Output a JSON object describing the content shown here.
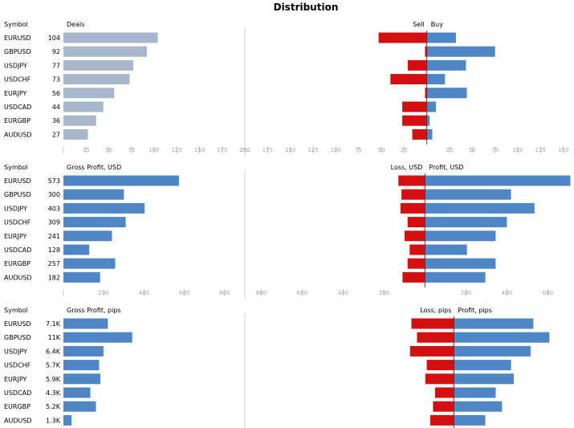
{
  "title": "Distribution",
  "symbols": [
    "EURUSD",
    "GBPUSD",
    "USDJPY",
    "USDCHF",
    "EURJPY",
    "USDCAD",
    "EURGBP",
    "AUDUSD"
  ],
  "colors": {
    "grey_bar": "#a9b7cd",
    "blue_bar": "#4f86c6",
    "red_bar": "#d40f0f",
    "axis": "#c8c8c8",
    "text": "#000000",
    "tick": "#a6a6a6"
  },
  "chart_data": [
    {
      "type": "bar",
      "panel": "deals",
      "symbol_header": "Symbol",
      "left_header": "Deals",
      "left_values": [
        104,
        92,
        77,
        73,
        56,
        44,
        36,
        27
      ],
      "left_labels": [
        "104",
        "92",
        "77",
        "73",
        "56",
        "44",
        "36",
        "27"
      ],
      "left_ticks": [
        25,
        50,
        75,
        100,
        125,
        150,
        175,
        200
      ],
      "left_tick_labels": [
        "25",
        "50",
        "75",
        "100",
        "125",
        "150",
        "175",
        "200"
      ],
      "left_xlim": [
        0,
        200
      ],
      "neg_header": "Sell",
      "pos_header": "Buy",
      "neg_values": [
        53,
        2,
        21,
        40,
        2,
        27,
        27,
        16
      ],
      "pos_values": [
        32,
        75,
        43,
        20,
        44,
        10,
        3,
        6
      ],
      "center_ticks": [
        200,
        175,
        150,
        125,
        100,
        75,
        50,
        25,
        25,
        50,
        75,
        100,
        125,
        150
      ],
      "center_tick_labels": [
        "200",
        "175",
        "150",
        "125",
        "100",
        "75",
        "50",
        "25",
        "25",
        "50",
        "75",
        "100",
        "125",
        "150"
      ],
      "center_xlim": [
        -200,
        160
      ]
    },
    {
      "type": "bar",
      "panel": "profit_usd",
      "symbol_header": "Symbol",
      "left_header": "Gross Profit, USD",
      "left_values": [
        573,
        300,
        403,
        309,
        241,
        128,
        257,
        182
      ],
      "left_labels": [
        "573",
        "300",
        "403",
        "309",
        "241",
        "128",
        "257",
        "182"
      ],
      "left_ticks": [
        200,
        400,
        600,
        800
      ],
      "left_tick_labels": [
        "200",
        "400",
        "600",
        "800"
      ],
      "left_xlim": [
        0,
        900
      ],
      "neg_header": "Loss, USD",
      "pos_header": "Profit, USD",
      "neg_values": [
        130,
        115,
        120,
        85,
        100,
        75,
        85,
        110
      ],
      "pos_values": [
        710,
        420,
        535,
        400,
        345,
        205,
        345,
        295
      ],
      "center_ticks": [
        -800,
        -600,
        -400,
        -200,
        200,
        400,
        600
      ],
      "center_tick_labels": [
        "800",
        "600",
        "400",
        "200",
        "200",
        "400",
        "600"
      ],
      "center_xlim": [
        -880,
        720
      ]
    },
    {
      "type": "bar",
      "panel": "profit_pips",
      "symbol_header": "Symbol",
      "left_header": "Gross Profit, pips",
      "left_values": [
        7.1,
        11,
        6.4,
        5.7,
        5.9,
        4.3,
        5.2,
        1.3
      ],
      "left_labels": [
        "7.1K",
        "11K",
        "6.4K",
        "5.7K",
        "5.9K",
        "4.3K",
        "5.2K",
        "1.3K"
      ],
      "left_ticks": [],
      "left_tick_labels": [],
      "left_xlim": [
        0,
        29
      ],
      "neg_header": "Loss, pips",
      "pos_header": "Profit, pips",
      "neg_values": [
        6.1,
        5.3,
        6.3,
        3.9,
        4.1,
        2.7,
        3.0,
        3.4
      ],
      "pos_values": [
        11.4,
        13.7,
        11.0,
        8.2,
        8.6,
        6.0,
        6.9,
        4.5
      ],
      "center_ticks": [],
      "center_tick_labels": [],
      "center_xlim": [
        -30,
        17
      ]
    }
  ]
}
